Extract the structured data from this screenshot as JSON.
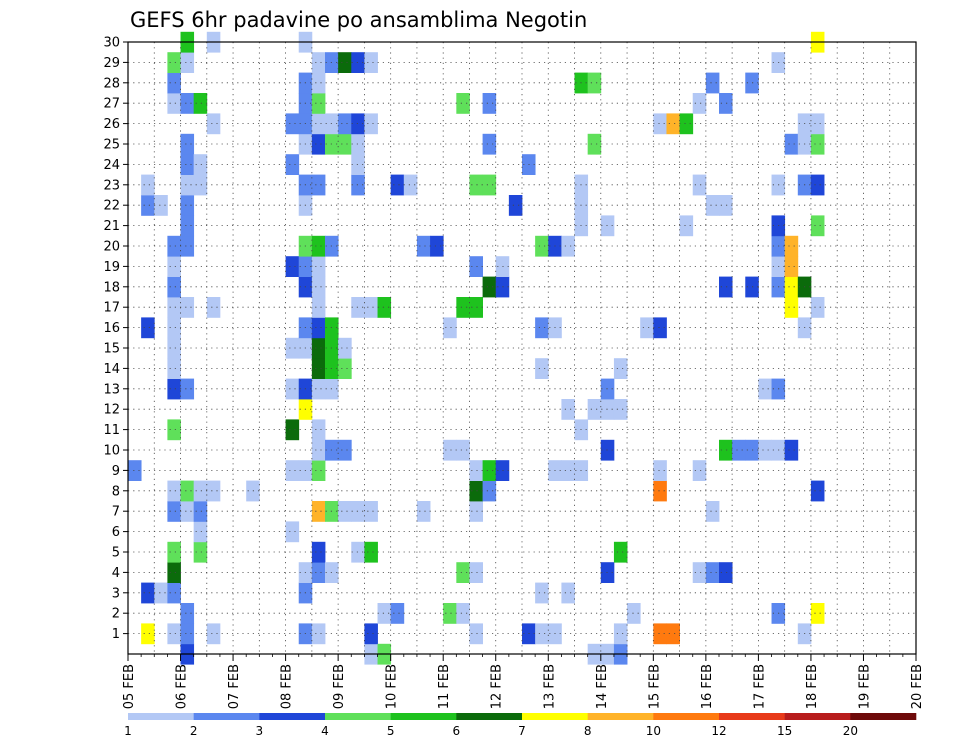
{
  "chart_data": {
    "type": "heatmap",
    "title": "GEFS 6hr padavine po ansamblima Negotin",
    "xlabel": "",
    "ylabel": "",
    "x_ticks": [
      "05 FEB",
      "06 FEB",
      "07 FEB",
      "08 FEB",
      "09 FEB",
      "10 FEB",
      "11 FEB",
      "12 FEB",
      "13 FEB",
      "14 FEB",
      "15 FEB",
      "16 FEB",
      "17 FEB",
      "18 FEB",
      "19 FEB",
      "20 FEB"
    ],
    "y_ticks": [
      "1",
      "2",
      "3",
      "4",
      "5",
      "6",
      "7",
      "8",
      "9",
      "10",
      "11",
      "12",
      "13",
      "14",
      "15",
      "16",
      "17",
      "18",
      "19",
      "20",
      "21",
      "22",
      "23",
      "24",
      "25",
      "26",
      "27",
      "28",
      "29",
      "30"
    ],
    "x_range_days": [
      0,
      15
    ],
    "y_range": [
      0,
      30
    ],
    "grid": true,
    "legend": {
      "placement": "bottom",
      "colors": [
        "#b3c8f5",
        "#5b87ef",
        "#1f46d8",
        "#5fe05a",
        "#1ec21e",
        "#0b6b0b",
        "#ffff00",
        "#ffb329",
        "#ff7a0f",
        "#e83a1a",
        "#b81c1c",
        "#6e0a0a"
      ],
      "labels": [
        "1",
        "2",
        "3",
        "4",
        "5",
        "6",
        "7",
        "8",
        "10",
        "12",
        "15",
        "20"
      ]
    },
    "palette": {
      "1": "#b3c8f5",
      "2": "#5b87ef",
      "3": "#1f46d8",
      "4": "#5fe05a",
      "5": "#1ec21e",
      "6": "#0b6b0b",
      "7": "#ffff00",
      "8": "#ffb329",
      "9": "#ff7a0f"
    },
    "note": "Each cell: [time step index from 05 FEB 00z at 6h resolution, ensemble member, color class]",
    "cells": [
      [
        0,
        9,
        2
      ],
      [
        1,
        1,
        7
      ],
      [
        1,
        3,
        3
      ],
      [
        1,
        16,
        3
      ],
      [
        1,
        22,
        2
      ],
      [
        1,
        23,
        1
      ],
      [
        2,
        3,
        1
      ],
      [
        2,
        22,
        1
      ],
      [
        3,
        1,
        1
      ],
      [
        3,
        3,
        2
      ],
      [
        3,
        4,
        6
      ],
      [
        3,
        5,
        4
      ],
      [
        3,
        7,
        2
      ],
      [
        3,
        8,
        1
      ],
      [
        3,
        11,
        4
      ],
      [
        3,
        13,
        3
      ],
      [
        3,
        14,
        1
      ],
      [
        3,
        15,
        1
      ],
      [
        3,
        16,
        1
      ],
      [
        3,
        17,
        1
      ],
      [
        3,
        18,
        2
      ],
      [
        3,
        19,
        1
      ],
      [
        3,
        20,
        2
      ],
      [
        3,
        27,
        1
      ],
      [
        3,
        28,
        2
      ],
      [
        3,
        29,
        4
      ],
      [
        4,
        0,
        3
      ],
      [
        4,
        1,
        2
      ],
      [
        4,
        2,
        2
      ],
      [
        4,
        7,
        1
      ],
      [
        4,
        8,
        4
      ],
      [
        4,
        13,
        2
      ],
      [
        4,
        17,
        1
      ],
      [
        4,
        20,
        2
      ],
      [
        4,
        21,
        2
      ],
      [
        4,
        22,
        2
      ],
      [
        4,
        23,
        1
      ],
      [
        4,
        24,
        2
      ],
      [
        4,
        25,
        2
      ],
      [
        4,
        27,
        2
      ],
      [
        4,
        29,
        1
      ],
      [
        4,
        30,
        5
      ],
      [
        5,
        5,
        4
      ],
      [
        5,
        6,
        1
      ],
      [
        5,
        7,
        2
      ],
      [
        5,
        8,
        1
      ],
      [
        5,
        23,
        1
      ],
      [
        5,
        24,
        1
      ],
      [
        5,
        27,
        5
      ],
      [
        6,
        1,
        1
      ],
      [
        6,
        8,
        1
      ],
      [
        6,
        17,
        1
      ],
      [
        6,
        26,
        1
      ],
      [
        6,
        30,
        1
      ],
      [
        9,
        8,
        1
      ],
      [
        12,
        6,
        1
      ],
      [
        12,
        9,
        1
      ],
      [
        12,
        11,
        6
      ],
      [
        12,
        13,
        1
      ],
      [
        12,
        15,
        1
      ],
      [
        12,
        19,
        3
      ],
      [
        12,
        24,
        2
      ],
      [
        12,
        26,
        2
      ],
      [
        13,
        1,
        2
      ],
      [
        13,
        3,
        2
      ],
      [
        13,
        4,
        1
      ],
      [
        13,
        9,
        1
      ],
      [
        13,
        12,
        7
      ],
      [
        13,
        13,
        3
      ],
      [
        13,
        15,
        1
      ],
      [
        13,
        16,
        2
      ],
      [
        13,
        18,
        3
      ],
      [
        13,
        19,
        2
      ],
      [
        13,
        20,
        4
      ],
      [
        13,
        22,
        1
      ],
      [
        13,
        23,
        2
      ],
      [
        13,
        25,
        1
      ],
      [
        13,
        26,
        2
      ],
      [
        13,
        27,
        2
      ],
      [
        13,
        28,
        2
      ],
      [
        13,
        30,
        1
      ],
      [
        14,
        1,
        1
      ],
      [
        14,
        4,
        2
      ],
      [
        14,
        5,
        3
      ],
      [
        14,
        7,
        8
      ],
      [
        14,
        9,
        4
      ],
      [
        14,
        10,
        1
      ],
      [
        14,
        11,
        1
      ],
      [
        14,
        13,
        1
      ],
      [
        14,
        14,
        6
      ],
      [
        14,
        15,
        6
      ],
      [
        14,
        16,
        3
      ],
      [
        14,
        17,
        1
      ],
      [
        14,
        18,
        1
      ],
      [
        14,
        19,
        1
      ],
      [
        14,
        20,
        5
      ],
      [
        14,
        23,
        2
      ],
      [
        14,
        25,
        3
      ],
      [
        14,
        26,
        1
      ],
      [
        14,
        27,
        4
      ],
      [
        14,
        28,
        1
      ],
      [
        14,
        29,
        1
      ],
      [
        15,
        4,
        1
      ],
      [
        15,
        7,
        4
      ],
      [
        15,
        10,
        2
      ],
      [
        15,
        13,
        1
      ],
      [
        15,
        14,
        5
      ],
      [
        15,
        15,
        5
      ],
      [
        15,
        16,
        5
      ],
      [
        15,
        20,
        2
      ],
      [
        15,
        25,
        4
      ],
      [
        15,
        26,
        1
      ],
      [
        15,
        29,
        2
      ],
      [
        16,
        7,
        1
      ],
      [
        16,
        10,
        2
      ],
      [
        16,
        14,
        4
      ],
      [
        16,
        15,
        1
      ],
      [
        16,
        25,
        4
      ],
      [
        16,
        26,
        2
      ],
      [
        16,
        29,
        6
      ],
      [
        17,
        5,
        1
      ],
      [
        17,
        7,
        1
      ],
      [
        17,
        17,
        1
      ],
      [
        17,
        23,
        2
      ],
      [
        17,
        24,
        1
      ],
      [
        17,
        25,
        1
      ],
      [
        17,
        26,
        3
      ],
      [
        17,
        29,
        3
      ],
      [
        18,
        0,
        1
      ],
      [
        18,
        1,
        3
      ],
      [
        18,
        5,
        5
      ],
      [
        18,
        7,
        1
      ],
      [
        18,
        17,
        1
      ],
      [
        18,
        26,
        1
      ],
      [
        18,
        29,
        1
      ],
      [
        19,
        0,
        4
      ],
      [
        19,
        2,
        1
      ],
      [
        19,
        17,
        5
      ],
      [
        20,
        2,
        2
      ],
      [
        20,
        23,
        3
      ],
      [
        21,
        23,
        1
      ],
      [
        22,
        7,
        1
      ],
      [
        22,
        20,
        2
      ],
      [
        23,
        20,
        3
      ],
      [
        24,
        2,
        4
      ],
      [
        24,
        10,
        1
      ],
      [
        24,
        16,
        1
      ],
      [
        25,
        2,
        1
      ],
      [
        25,
        4,
        4
      ],
      [
        25,
        10,
        1
      ],
      [
        25,
        17,
        5
      ],
      [
        25,
        27,
        4
      ],
      [
        26,
        1,
        1
      ],
      [
        26,
        4,
        1
      ],
      [
        26,
        7,
        1
      ],
      [
        26,
        8,
        6
      ],
      [
        26,
        9,
        1
      ],
      [
        26,
        17,
        5
      ],
      [
        26,
        19,
        2
      ],
      [
        26,
        23,
        4
      ],
      [
        27,
        8,
        2
      ],
      [
        27,
        9,
        5
      ],
      [
        27,
        18,
        6
      ],
      [
        27,
        23,
        4
      ],
      [
        27,
        25,
        2
      ],
      [
        27,
        27,
        2
      ],
      [
        28,
        9,
        3
      ],
      [
        28,
        18,
        3
      ],
      [
        28,
        19,
        1
      ],
      [
        29,
        22,
        3
      ],
      [
        30,
        1,
        3
      ],
      [
        30,
        24,
        2
      ],
      [
        31,
        1,
        1
      ],
      [
        31,
        3,
        1
      ],
      [
        31,
        14,
        1
      ],
      [
        31,
        16,
        2
      ],
      [
        31,
        20,
        4
      ],
      [
        32,
        1,
        1
      ],
      [
        32,
        9,
        1
      ],
      [
        32,
        16,
        1
      ],
      [
        32,
        20,
        3
      ],
      [
        33,
        3,
        1
      ],
      [
        33,
        9,
        1
      ],
      [
        33,
        12,
        1
      ],
      [
        33,
        20,
        1
      ],
      [
        34,
        9,
        1
      ],
      [
        34,
        11,
        1
      ],
      [
        34,
        21,
        1
      ],
      [
        34,
        22,
        1
      ],
      [
        34,
        23,
        1
      ],
      [
        34,
        28,
        5
      ],
      [
        35,
        0,
        1
      ],
      [
        35,
        12,
        1
      ],
      [
        35,
        25,
        4
      ],
      [
        35,
        28,
        4
      ],
      [
        36,
        0,
        1
      ],
      [
        36,
        4,
        3
      ],
      [
        36,
        10,
        3
      ],
      [
        36,
        12,
        1
      ],
      [
        36,
        13,
        2
      ],
      [
        36,
        21,
        1
      ],
      [
        37,
        0,
        2
      ],
      [
        37,
        1,
        1
      ],
      [
        37,
        5,
        5
      ],
      [
        37,
        12,
        1
      ],
      [
        37,
        14,
        1
      ],
      [
        38,
        2,
        1
      ],
      [
        39,
        16,
        1
      ],
      [
        40,
        1,
        9
      ],
      [
        40,
        8,
        9
      ],
      [
        40,
        9,
        1
      ],
      [
        40,
        16,
        3
      ],
      [
        40,
        26,
        1
      ],
      [
        41,
        1,
        9
      ],
      [
        41,
        26,
        8
      ],
      [
        42,
        21,
        1
      ],
      [
        42,
        26,
        5
      ],
      [
        43,
        4,
        1
      ],
      [
        43,
        9,
        1
      ],
      [
        43,
        23,
        1
      ],
      [
        43,
        27,
        1
      ],
      [
        44,
        4,
        2
      ],
      [
        44,
        7,
        1
      ],
      [
        44,
        22,
        1
      ],
      [
        44,
        28,
        2
      ],
      [
        45,
        4,
        3
      ],
      [
        45,
        10,
        5
      ],
      [
        45,
        18,
        3
      ],
      [
        45,
        22,
        1
      ],
      [
        45,
        27,
        2
      ],
      [
        46,
        10,
        2
      ],
      [
        47,
        10,
        2
      ],
      [
        47,
        18,
        3
      ],
      [
        47,
        28,
        2
      ],
      [
        48,
        10,
        1
      ],
      [
        48,
        13,
        1
      ],
      [
        49,
        2,
        2
      ],
      [
        49,
        10,
        1
      ],
      [
        49,
        13,
        2
      ],
      [
        49,
        18,
        2
      ],
      [
        49,
        19,
        1
      ],
      [
        49,
        20,
        2
      ],
      [
        49,
        21,
        3
      ],
      [
        49,
        23,
        1
      ],
      [
        49,
        29,
        1
      ],
      [
        50,
        10,
        3
      ],
      [
        50,
        17,
        7
      ],
      [
        50,
        18,
        7
      ],
      [
        50,
        19,
        8
      ],
      [
        50,
        20,
        8
      ],
      [
        50,
        25,
        2
      ],
      [
        51,
        1,
        1
      ],
      [
        51,
        16,
        1
      ],
      [
        51,
        18,
        6
      ],
      [
        51,
        23,
        2
      ],
      [
        51,
        25,
        1
      ],
      [
        51,
        26,
        1
      ],
      [
        52,
        2,
        7
      ],
      [
        52,
        8,
        3
      ],
      [
        52,
        17,
        1
      ],
      [
        52,
        21,
        4
      ],
      [
        52,
        23,
        3
      ],
      [
        52,
        25,
        4
      ],
      [
        52,
        26,
        1
      ],
      [
        52,
        30,
        7
      ]
    ]
  }
}
